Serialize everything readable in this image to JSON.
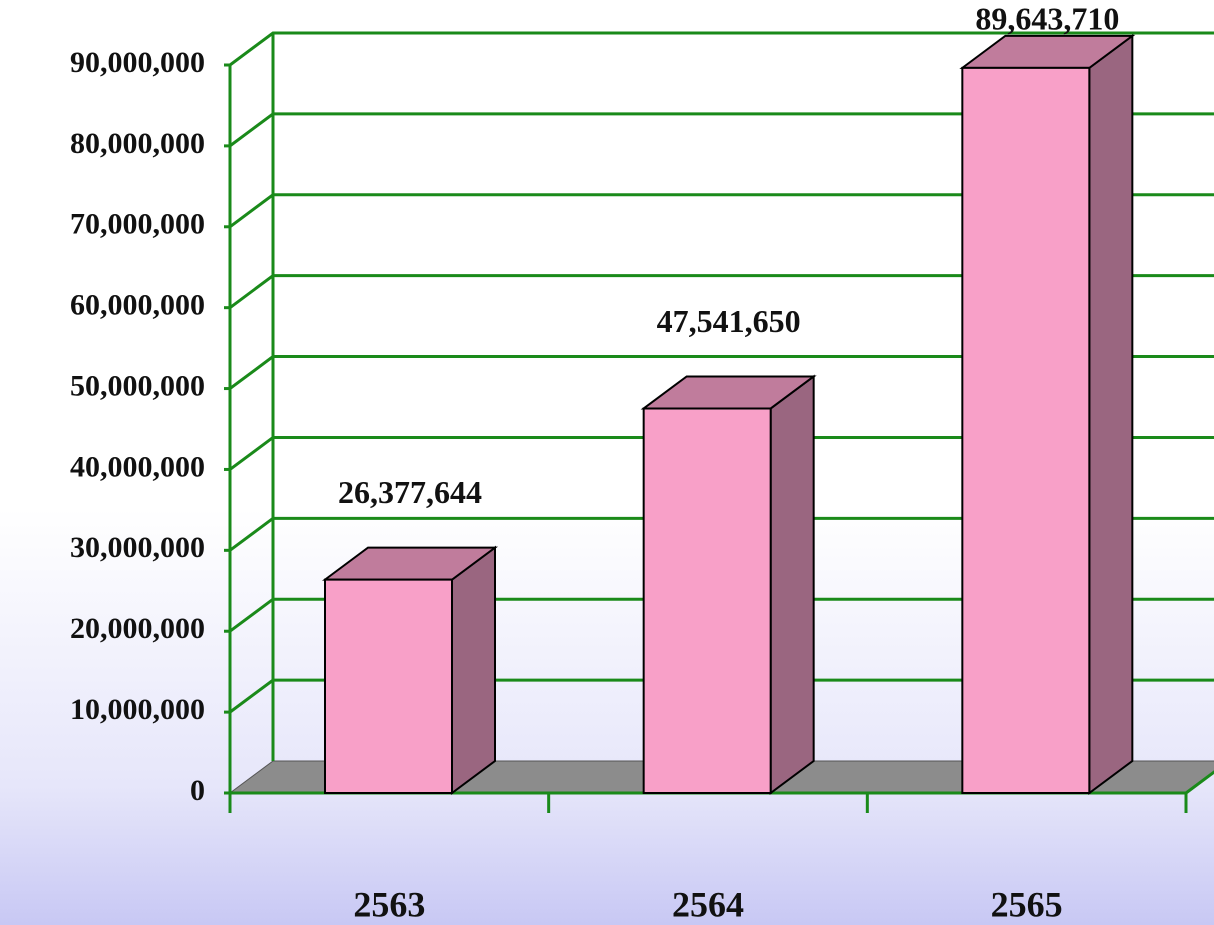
{
  "chart_data": {
    "type": "bar3d",
    "categories": [
      "2563",
      "2564",
      "2565"
    ],
    "values": [
      26377644,
      47541650,
      89643710
    ],
    "value_labels": [
      "26,377,644",
      "47,541,650",
      "89,643,710"
    ],
    "color": "#f8a0c8",
    "ylim": [
      0,
      90000000
    ],
    "yticks": [
      0,
      {
        "value": 10000000,
        "label": "10,000,000"
      },
      {
        "value": 20000000,
        "label": "20,000,000"
      },
      {
        "value": 30000000,
        "label": "30,000,000"
      },
      {
        "value": 40000000,
        "label": "40,000,000"
      },
      {
        "value": 50000000,
        "label": "50,000,000"
      },
      {
        "value": 60000000,
        "label": "60,000,000"
      },
      {
        "value": 70000000,
        "label": "70,000,000"
      },
      {
        "value": 80000000,
        "label": "80,000,000"
      },
      {
        "value": 90000000,
        "label": "90,000,000"
      }
    ],
    "grid": true
  }
}
